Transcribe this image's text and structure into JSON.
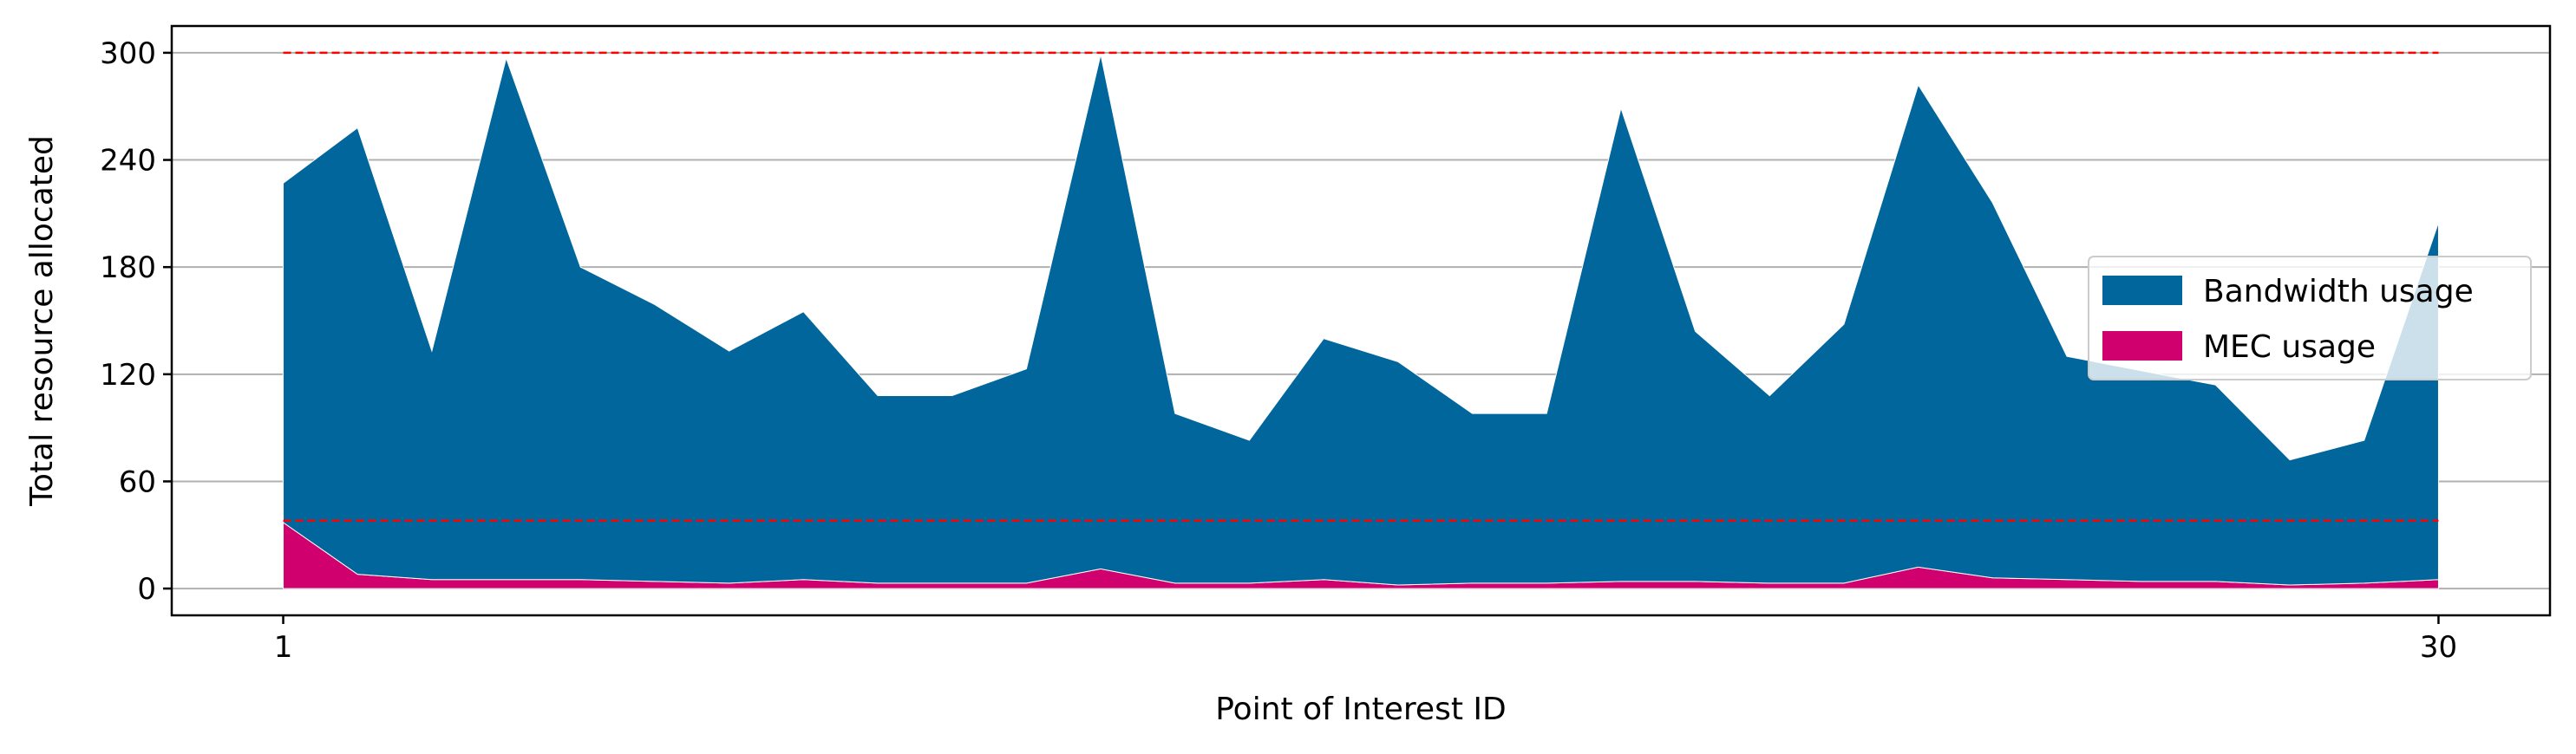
{
  "chart_data": {
    "type": "area",
    "title": "",
    "xlabel": "Point of Interest ID",
    "ylabel": "Total resource allocated",
    "x": [
      1,
      2,
      3,
      4,
      5,
      6,
      7,
      8,
      9,
      10,
      11,
      12,
      13,
      14,
      15,
      16,
      17,
      18,
      19,
      20,
      21,
      22,
      23,
      24,
      25,
      26,
      27,
      28,
      29,
      30
    ],
    "x_ticks": [
      1,
      30
    ],
    "x_tick_labels": [
      "1",
      "30"
    ],
    "xlim": [
      -0.5,
      31.5
    ],
    "ylim": [
      -15,
      315
    ],
    "y_ticks": [
      0,
      60,
      120,
      180,
      240,
      300
    ],
    "y_tick_labels": [
      "0",
      "60",
      "120",
      "180",
      "240",
      "300"
    ],
    "grid": "horizontal",
    "legend_position": "center-right",
    "series": [
      {
        "name": "Bandwidth usage",
        "color": "#01669b",
        "values": [
          190,
          250,
          128,
          292,
          175,
          155,
          130,
          150,
          105,
          105,
          120,
          288,
          95,
          80,
          135,
          125,
          95,
          95,
          265,
          140,
          105,
          145,
          270,
          210,
          125,
          118,
          110,
          70,
          80,
          200
        ]
      },
      {
        "name": "MEC usage",
        "color": "#d0006f",
        "values": [
          37,
          8,
          5,
          5,
          5,
          4,
          3,
          5,
          3,
          3,
          3,
          11,
          3,
          3,
          5,
          2,
          3,
          3,
          4,
          4,
          3,
          3,
          12,
          6,
          5,
          4,
          4,
          2,
          3,
          5
        ]
      }
    ],
    "reference_lines": [
      {
        "y": 300,
        "color": "#ff0000",
        "style": "dashed"
      },
      {
        "y": 38,
        "color": "#ff0000",
        "style": "dashed"
      }
    ]
  }
}
